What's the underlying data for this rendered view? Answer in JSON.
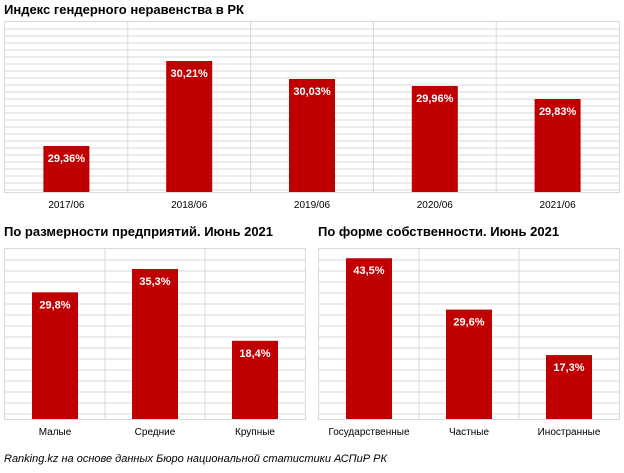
{
  "colors": {
    "bar": "#c00000",
    "grid": "#d9d9d9",
    "frame": "#d9d9d9",
    "label_text": "#ffffff",
    "axis_text": "#000000"
  },
  "chart_data": [
    {
      "type": "bar",
      "title": "Индекс гендерного неравенства в РК",
      "categories": [
        "2017/06",
        "2018/06",
        "2019/06",
        "2020/06",
        "2021/06"
      ],
      "values": [
        29.36,
        30.21,
        30.03,
        29.96,
        29.83
      ],
      "labels": [
        "29,36%",
        "30,21%",
        "30,03%",
        "29,96%",
        "29,83%"
      ],
      "ylim": [
        28.9,
        30.6
      ],
      "grid": true
    },
    {
      "type": "bar",
      "title": "По размерности предприятий. Июнь 2021",
      "categories": [
        "Малые",
        "Средние",
        "Крупные"
      ],
      "values": [
        29.8,
        35.3,
        18.4
      ],
      "labels": [
        "29,8%",
        "35,3%",
        "18,4%"
      ],
      "ylim": [
        0,
        40
      ],
      "grid": true
    },
    {
      "type": "bar",
      "title": "По форме собственности. Июнь 2021",
      "categories": [
        "Государственные",
        "Частные",
        "Иностранные"
      ],
      "values": [
        43.5,
        29.6,
        17.3
      ],
      "labels": [
        "43,5%",
        "29,6%",
        "17,3%"
      ],
      "ylim": [
        0,
        46
      ],
      "grid": true
    }
  ],
  "source": "Ranking.kz на основе данных Бюро национальной статистики АСПиР РК"
}
